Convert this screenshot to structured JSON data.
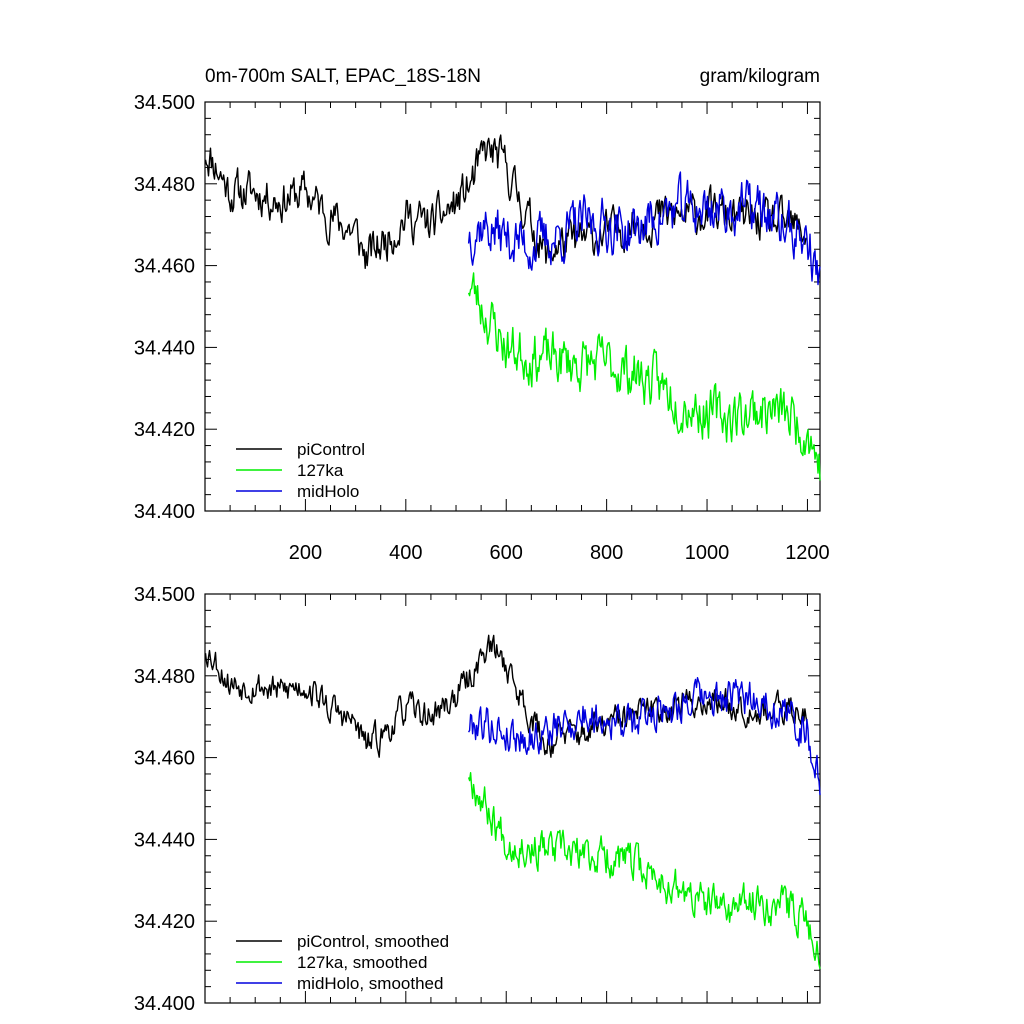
{
  "title": "0m-700m SALT, EPAC_18S-18N",
  "units": "gram/kilogram",
  "x_ticks": [
    200,
    400,
    600,
    800,
    1000,
    1200
  ],
  "y_ticks": [
    "34.500",
    "34.480",
    "34.460",
    "34.440",
    "34.420",
    "34.400"
  ],
  "colors": {
    "piControl": "#000000",
    "127ka": "#00ee00",
    "midHolo": "#0000dd"
  },
  "chart_data": [
    {
      "type": "line",
      "panel": "top",
      "title": "0m-700m SALT, EPAC_18S-18N",
      "units": "gram/kilogram",
      "xlim": [
        0,
        1225
      ],
      "ylim": [
        34.4,
        34.5
      ],
      "x_ticks": [
        200,
        400,
        600,
        800,
        1000,
        1200
      ],
      "show_x_tick_labels": true,
      "legend": [
        "piControl",
        "127ka",
        "midHolo"
      ],
      "legend_position": "bottom-left",
      "series": [
        {
          "name": "piControl",
          "color": "#000000",
          "noise": 0.0075,
          "seed": 11,
          "x": [
            1,
            20,
            50,
            100,
            150,
            200,
            250,
            300,
            320,
            350,
            400,
            450,
            500,
            530,
            560,
            580,
            600,
            620,
            650,
            680,
            700,
            750,
            800,
            850,
            900,
            950,
            1000,
            1050,
            1100,
            1150,
            1200
          ],
          "values": [
            34.488,
            34.485,
            34.478,
            34.478,
            34.476,
            34.478,
            34.472,
            34.468,
            34.462,
            34.465,
            34.472,
            34.47,
            34.475,
            34.48,
            34.488,
            34.487,
            34.484,
            34.478,
            34.47,
            34.462,
            34.465,
            34.466,
            34.468,
            34.47,
            34.472,
            34.472,
            34.473,
            34.472,
            34.471,
            34.47,
            34.468
          ]
        },
        {
          "name": "127ka",
          "color": "#00ee00",
          "noise": 0.0095,
          "seed": 23,
          "x": [
            525,
            560,
            600,
            650,
            700,
            750,
            800,
            850,
            900,
            950,
            1000,
            1050,
            1100,
            1150,
            1200,
            1225
          ],
          "values": [
            34.456,
            34.448,
            34.44,
            34.438,
            34.437,
            34.436,
            34.436,
            34.434,
            34.431,
            34.427,
            34.424,
            34.423,
            34.425,
            34.424,
            34.42,
            34.411
          ]
        },
        {
          "name": "midHolo",
          "color": "#0000dd",
          "noise": 0.0095,
          "seed": 37,
          "x": [
            525,
            550,
            600,
            650,
            700,
            750,
            800,
            850,
            900,
            950,
            1000,
            1050,
            1100,
            1150,
            1200,
            1225
          ],
          "values": [
            34.468,
            34.47,
            34.467,
            34.465,
            34.467,
            34.47,
            34.47,
            34.468,
            34.472,
            34.474,
            34.474,
            34.474,
            34.474,
            34.47,
            34.466,
            34.455
          ]
        }
      ]
    },
    {
      "type": "line",
      "panel": "bottom",
      "xlim": [
        0,
        1225
      ],
      "ylim": [
        34.4,
        34.5
      ],
      "x_ticks": [
        200,
        400,
        600,
        800,
        1000,
        1200
      ],
      "show_x_tick_labels": false,
      "legend": [
        "piControl, smoothed",
        "127ka, smoothed",
        "midHolo, smoothed"
      ],
      "legend_position": "bottom-left",
      "series": [
        {
          "name": "piControl, smoothed",
          "color": "#000000",
          "noise": 0.0055,
          "seed": 53,
          "x": [
            1,
            20,
            50,
            100,
            150,
            200,
            250,
            300,
            320,
            350,
            400,
            450,
            500,
            530,
            560,
            580,
            600,
            620,
            650,
            680,
            700,
            750,
            800,
            850,
            900,
            950,
            1000,
            1050,
            1100,
            1150,
            1200
          ],
          "values": [
            34.487,
            34.484,
            34.478,
            34.478,
            34.476,
            34.478,
            34.472,
            34.468,
            34.463,
            34.465,
            34.472,
            34.47,
            34.475,
            34.48,
            34.487,
            34.486,
            34.483,
            34.477,
            34.47,
            34.463,
            34.465,
            34.466,
            34.468,
            34.47,
            34.472,
            34.473,
            34.474,
            34.473,
            34.472,
            34.471,
            34.472
          ]
        },
        {
          "name": "127ka, smoothed",
          "color": "#00ee00",
          "noise": 0.007,
          "seed": 67,
          "x": [
            525,
            560,
            600,
            650,
            700,
            750,
            800,
            850,
            900,
            950,
            1000,
            1050,
            1100,
            1150,
            1200,
            1225
          ],
          "values": [
            34.457,
            34.448,
            34.44,
            34.438,
            34.437,
            34.436,
            34.436,
            34.434,
            34.431,
            34.427,
            34.424,
            34.423,
            34.425,
            34.424,
            34.421,
            34.41
          ]
        },
        {
          "name": "midHolo, smoothed",
          "color": "#0000dd",
          "noise": 0.007,
          "seed": 79,
          "x": [
            525,
            550,
            600,
            650,
            700,
            750,
            800,
            850,
            900,
            950,
            1000,
            1050,
            1100,
            1150,
            1200,
            1225
          ],
          "values": [
            34.468,
            34.469,
            34.466,
            34.465,
            34.467,
            34.47,
            34.47,
            34.468,
            34.472,
            34.474,
            34.474,
            34.474,
            34.475,
            34.471,
            34.467,
            34.453
          ]
        }
      ]
    }
  ]
}
